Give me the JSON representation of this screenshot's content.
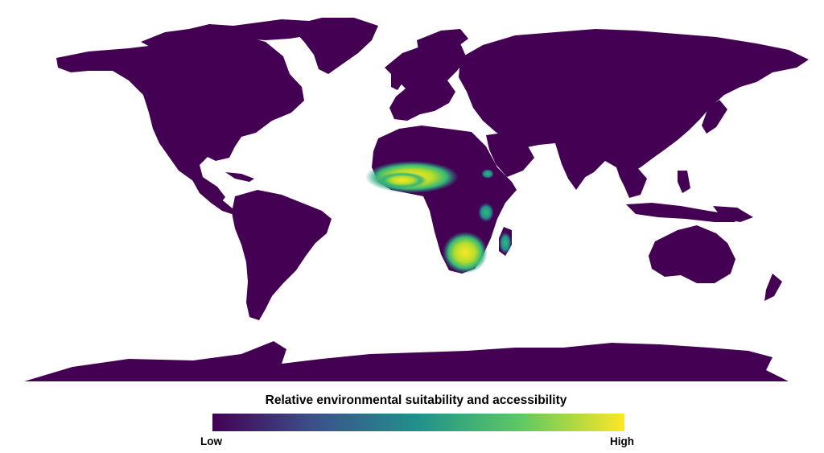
{
  "map": {
    "land_color": "#440154",
    "ocean_color": "#ffffff",
    "hotspots": [
      {
        "region": "west-africa-sahel",
        "level": 0.85
      },
      {
        "region": "southern-africa",
        "level": 0.95
      },
      {
        "region": "east-africa-coast",
        "level": 0.55
      },
      {
        "region": "madagascar-east",
        "level": 0.45
      },
      {
        "region": "sudan-east",
        "level": 0.35
      }
    ]
  },
  "legend": {
    "title": "Relative environmental suitability and accessibility",
    "low_label": "Low",
    "high_label": "High",
    "colors": [
      "#440154",
      "#3b528b",
      "#21918c",
      "#5ec962",
      "#fde725"
    ]
  }
}
